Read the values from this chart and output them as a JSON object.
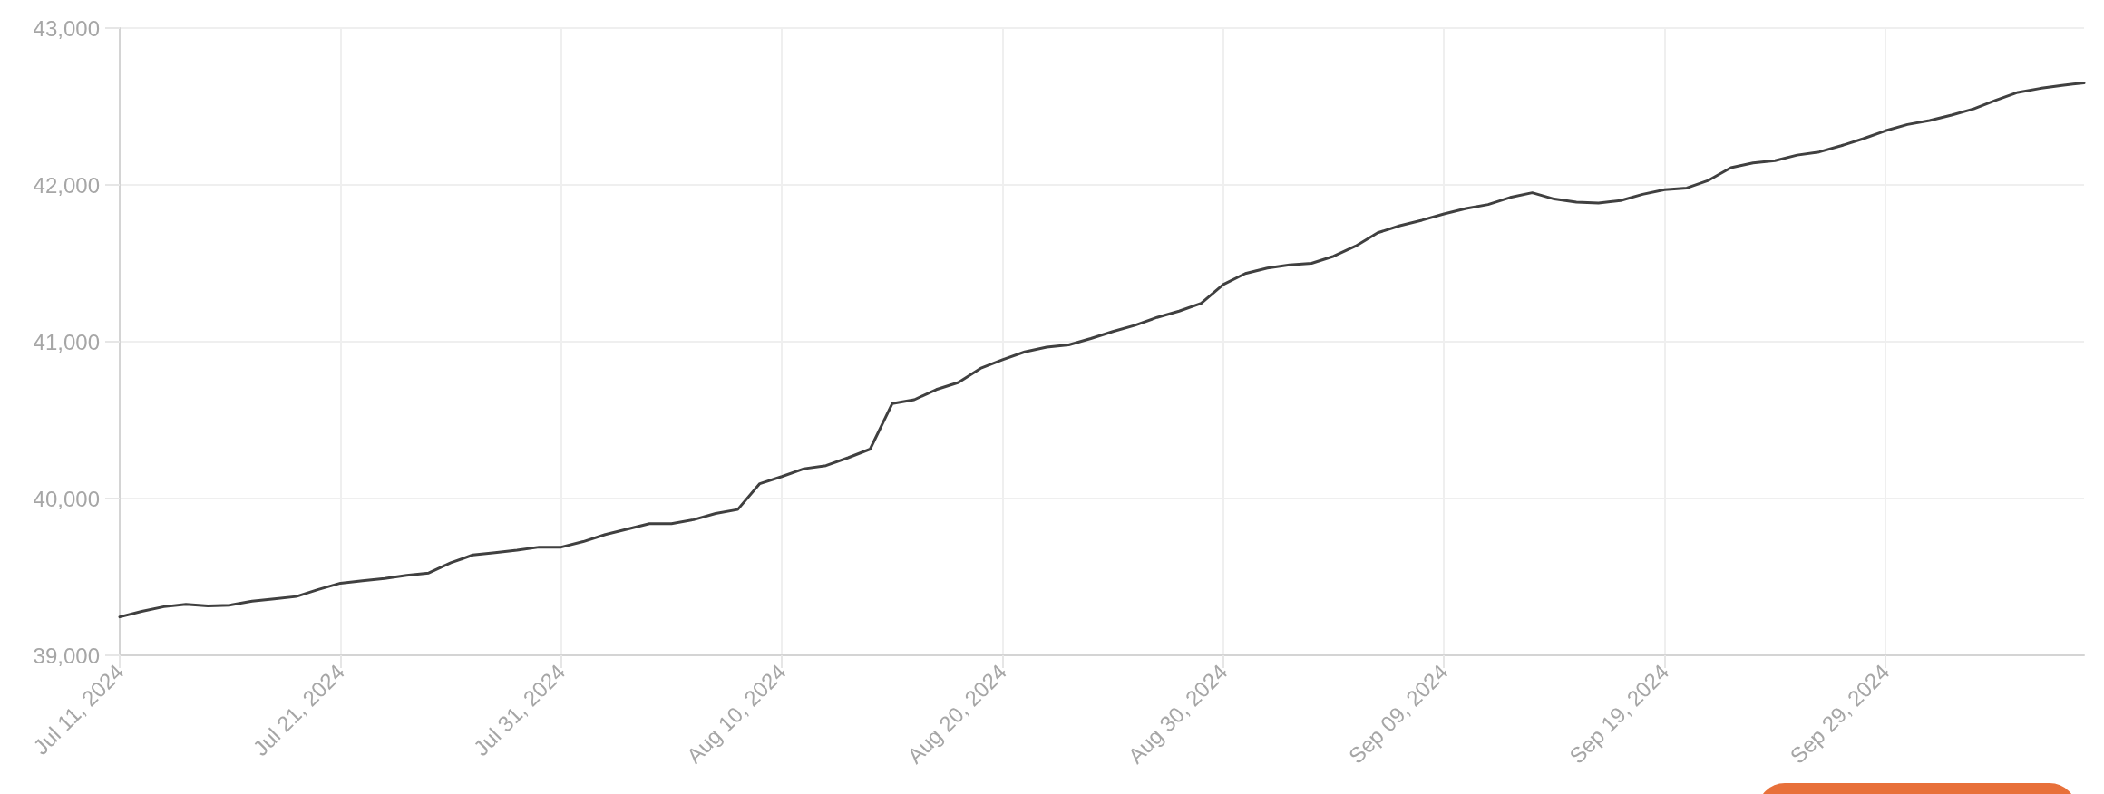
{
  "chart_data": {
    "type": "line",
    "x": [
      "2024-07-11",
      "2024-07-12",
      "2024-07-13",
      "2024-07-14",
      "2024-07-15",
      "2024-07-16",
      "2024-07-17",
      "2024-07-18",
      "2024-07-19",
      "2024-07-20",
      "2024-07-21",
      "2024-07-22",
      "2024-07-23",
      "2024-07-24",
      "2024-07-25",
      "2024-07-26",
      "2024-07-27",
      "2024-07-28",
      "2024-07-29",
      "2024-07-30",
      "2024-07-31",
      "2024-08-01",
      "2024-08-02",
      "2024-08-03",
      "2024-08-04",
      "2024-08-05",
      "2024-08-06",
      "2024-08-07",
      "2024-08-08",
      "2024-08-09",
      "2024-08-10",
      "2024-08-11",
      "2024-08-12",
      "2024-08-13",
      "2024-08-14",
      "2024-08-15",
      "2024-08-16",
      "2024-08-17",
      "2024-08-18",
      "2024-08-19",
      "2024-08-20",
      "2024-08-21",
      "2024-08-22",
      "2024-08-23",
      "2024-08-24",
      "2024-08-25",
      "2024-08-26",
      "2024-08-27",
      "2024-08-28",
      "2024-08-29",
      "2024-08-30",
      "2024-08-31",
      "2024-09-01",
      "2024-09-02",
      "2024-09-03",
      "2024-09-04",
      "2024-09-05",
      "2024-09-06",
      "2024-09-07",
      "2024-09-08",
      "2024-09-09",
      "2024-09-10",
      "2024-09-11",
      "2024-09-12",
      "2024-09-13",
      "2024-09-14",
      "2024-09-15",
      "2024-09-16",
      "2024-09-17",
      "2024-09-18",
      "2024-09-19",
      "2024-09-20",
      "2024-09-21",
      "2024-09-22",
      "2024-09-23",
      "2024-09-24",
      "2024-09-25",
      "2024-09-26",
      "2024-09-27",
      "2024-09-28",
      "2024-09-29",
      "2024-09-30",
      "2024-10-01",
      "2024-10-02",
      "2024-10-03",
      "2024-10-04",
      "2024-10-05",
      "2024-10-06",
      "2024-10-07",
      "2024-10-08"
    ],
    "values": [
      39245,
      39280,
      39310,
      39325,
      39315,
      39320,
      39345,
      39360,
      39375,
      39420,
      39460,
      39475,
      39490,
      39510,
      39525,
      39590,
      39640,
      39655,
      39670,
      39690,
      39690,
      39725,
      39770,
      39805,
      39840,
      39840,
      39865,
      39905,
      39930,
      40095,
      40140,
      40190,
      40210,
      40260,
      40315,
      40605,
      40630,
      40695,
      40740,
      40830,
      40885,
      40935,
      40965,
      40980,
      41020,
      41065,
      41105,
      41155,
      41195,
      41245,
      41365,
      41435,
      41470,
      41490,
      41500,
      41545,
      41610,
      41695,
      41740,
      41775,
      41815,
      41850,
      41875,
      41920,
      41950,
      41910,
      41890,
      41885,
      41900,
      41940,
      41970,
      41980,
      42030,
      42110,
      42140,
      42155,
      42190,
      42210,
      42250,
      42295,
      42345,
      42385,
      42410,
      42445,
      42485,
      42540,
      42590,
      42615,
      42635,
      42650
    ],
    "color": "#404040",
    "xlim": [
      "2024-07-11",
      "2024-10-08"
    ],
    "xticks": [
      {
        "value": "2024-07-11",
        "label": "Jul 11, 2024"
      },
      {
        "value": "2024-07-21",
        "label": "Jul 21, 2024"
      },
      {
        "value": "2024-07-31",
        "label": "Jul 31, 2024"
      },
      {
        "value": "2024-08-10",
        "label": "Aug 10, 2024"
      },
      {
        "value": "2024-08-20",
        "label": "Aug 20, 2024"
      },
      {
        "value": "2024-08-30",
        "label": "Aug 30, 2024"
      },
      {
        "value": "2024-09-09",
        "label": "Sep 09, 2024"
      },
      {
        "value": "2024-09-19",
        "label": "Sep 19, 2024"
      },
      {
        "value": "2024-09-29",
        "label": "Sep 29, 2024"
      }
    ],
    "ylim": [
      39000,
      43000
    ],
    "yticks": [
      {
        "value": 39000,
        "label": "39,000"
      },
      {
        "value": 40000,
        "label": "40,000"
      },
      {
        "value": 41000,
        "label": "41,000"
      },
      {
        "value": 42000,
        "label": "42,000"
      },
      {
        "value": 43000,
        "label": "43,000"
      }
    ],
    "grid": true,
    "marker": "none",
    "line_style": "solid"
  }
}
